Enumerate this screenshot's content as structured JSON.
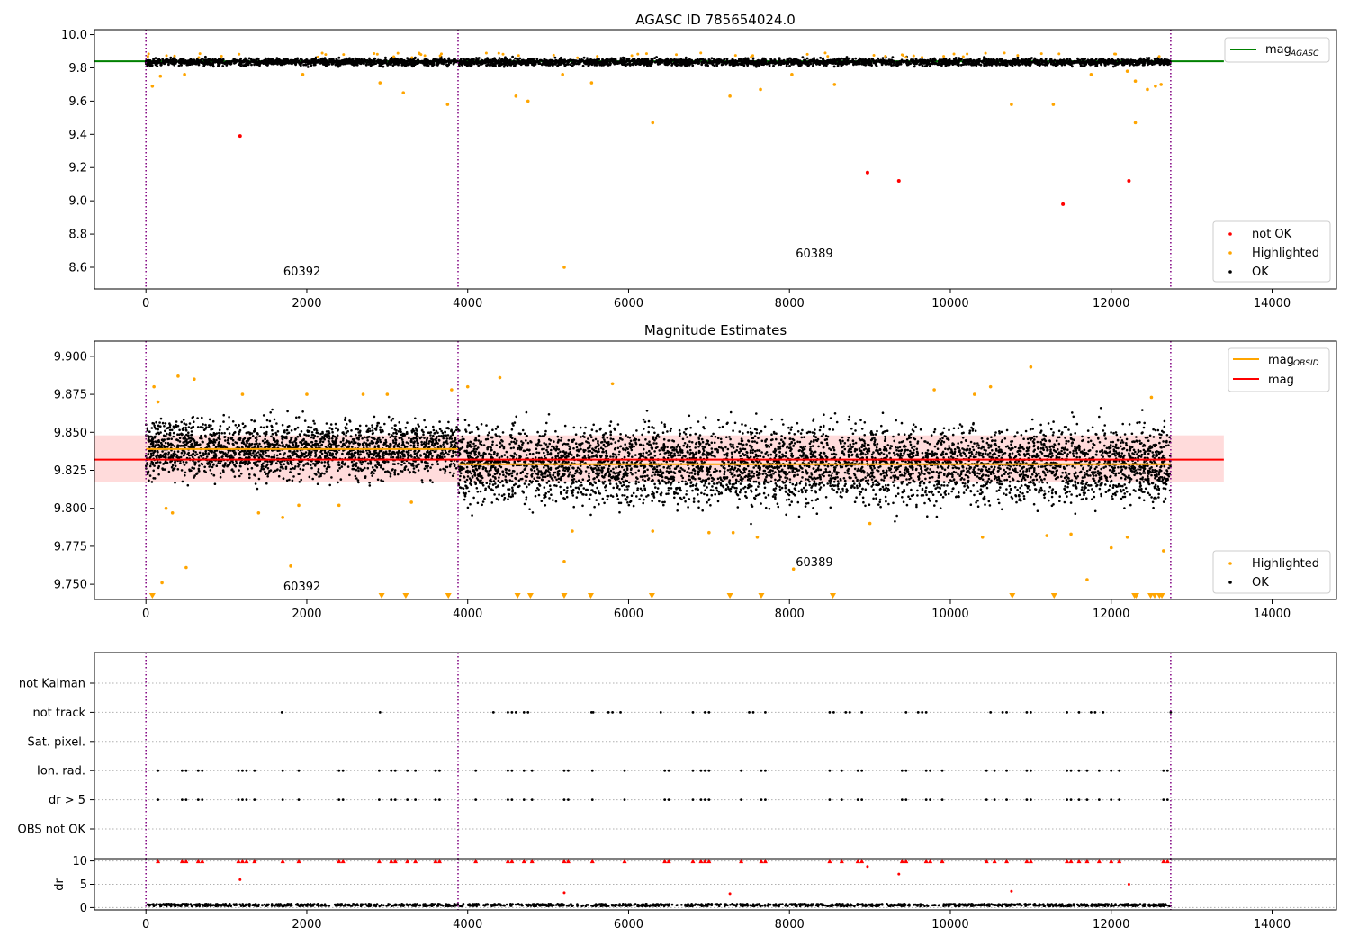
{
  "figure": {
    "colors": {
      "ok": "#000000",
      "highlighted": "#ffa500",
      "not_ok": "#ff0000",
      "obsid_boundary": "#800080",
      "mag_agasc": "#008000",
      "mag_obsid": "#ffa500",
      "mag": "#ff0000",
      "band": "#ffcccc"
    }
  },
  "chart_data": [
    {
      "type": "scatter",
      "title": "AGASC ID 785654024.0",
      "xlim": [
        -640,
        14800
      ],
      "ylim": [
        8.47,
        10.03
      ],
      "xticks": [
        0,
        2000,
        4000,
        6000,
        8000,
        10000,
        12000,
        14000
      ],
      "yticks": [
        8.6,
        8.8,
        9.0,
        9.2,
        9.4,
        9.6,
        9.8,
        10.0
      ],
      "obsid_boundaries_x": [
        0,
        3880,
        12740
      ],
      "obsid_labels": [
        {
          "text": "60392",
          "x": 1940,
          "y": 8.55
        },
        {
          "text": "60389",
          "x": 8310,
          "y": 8.66
        }
      ],
      "lines": [
        {
          "name": "mag_AGASC",
          "y": 9.84,
          "x_range": [
            -640,
            13400
          ],
          "color": "#008000"
        }
      ],
      "ok_band": {
        "y_center": 9.835,
        "y_spread": 0.03,
        "x_range": [
          0,
          12740
        ]
      },
      "highlighted_points": [
        [
          80,
          9.69
        ],
        [
          180,
          9.75
        ],
        [
          480,
          9.76
        ],
        [
          1950,
          9.76
        ],
        [
          2910,
          9.71
        ],
        [
          3200,
          9.65
        ],
        [
          3750,
          9.58
        ],
        [
          4600,
          9.63
        ],
        [
          4750,
          9.6
        ],
        [
          5180,
          9.76
        ],
        [
          5200,
          8.6
        ],
        [
          5540,
          9.71
        ],
        [
          6300,
          9.47
        ],
        [
          7260,
          9.63
        ],
        [
          7640,
          9.67
        ],
        [
          8030,
          9.76
        ],
        [
          8560,
          9.7
        ],
        [
          10760,
          9.58
        ],
        [
          11280,
          9.58
        ],
        [
          11750,
          9.76
        ],
        [
          12200,
          9.78
        ],
        [
          12300,
          9.72
        ],
        [
          12300,
          9.47
        ],
        [
          12450,
          9.67
        ],
        [
          12550,
          9.69
        ],
        [
          12620,
          9.7
        ]
      ],
      "not_ok_points": [
        [
          1170,
          9.39
        ],
        [
          8970,
          9.17
        ],
        [
          9360,
          9.12
        ],
        [
          11400,
          8.98
        ],
        [
          12220,
          9.12
        ]
      ],
      "legend": [
        {
          "label": "mag",
          "sub": "AGASC",
          "kind": "line",
          "color": "#008000"
        },
        {
          "label": "not OK",
          "kind": "marker",
          "color": "#ff0000"
        },
        {
          "label": "Highlighted",
          "kind": "marker",
          "color": "#ffa500"
        },
        {
          "label": "OK",
          "kind": "marker",
          "color": "#000000"
        }
      ]
    },
    {
      "type": "scatter",
      "title": "Magnitude Estimates",
      "xlim": [
        -640,
        14800
      ],
      "ylim": [
        9.74,
        9.91
      ],
      "xticks": [
        0,
        2000,
        4000,
        6000,
        8000,
        10000,
        12000,
        14000
      ],
      "yticks": [
        9.75,
        9.775,
        9.8,
        9.825,
        9.85,
        9.875,
        9.9
      ],
      "ytick_labels": [
        "9.750",
        "9.775",
        "9.800",
        "9.825",
        "9.850",
        "9.875",
        "9.900"
      ],
      "obsid_boundaries_x": [
        0,
        3880,
        12740
      ],
      "obsid_labels": [
        {
          "text": "60392",
          "x": 1940,
          "y": 9.746
        },
        {
          "text": "60389",
          "x": 8310,
          "y": 9.762
        }
      ],
      "mag_band": {
        "x_range": [
          -640,
          13400
        ],
        "y_range": [
          9.817,
          9.848
        ],
        "color": "#ffcccc"
      },
      "lines": [
        {
          "name": "mag_OBSID 60392",
          "y": 9.839,
          "x_range": [
            0,
            3880
          ],
          "color": "#ffa500"
        },
        {
          "name": "mag_OBSID 60389",
          "y": 9.829,
          "x_range": [
            3880,
            12740
          ],
          "color": "#ffa500"
        },
        {
          "name": "mag",
          "y": 9.832,
          "x_range": [
            -640,
            13400
          ],
          "color": "#ff0000"
        }
      ],
      "ok_segments": [
        {
          "x_range": [
            0,
            3880
          ],
          "center": 9.839,
          "spread": 0.014
        },
        {
          "x_range": [
            3880,
            12740
          ],
          "center": 9.829,
          "spread": 0.019
        }
      ],
      "highlighted_points": [
        [
          100,
          9.88
        ],
        [
          150,
          9.87
        ],
        [
          200,
          9.751
        ],
        [
          250,
          9.8
        ],
        [
          330,
          9.797
        ],
        [
          400,
          9.887
        ],
        [
          500,
          9.761
        ],
        [
          600,
          9.885
        ],
        [
          1200,
          9.875
        ],
        [
          1400,
          9.797
        ],
        [
          1700,
          9.794
        ],
        [
          1800,
          9.762
        ],
        [
          1900,
          9.802
        ],
        [
          2000,
          9.875
        ],
        [
          2400,
          9.802
        ],
        [
          2700,
          9.875
        ],
        [
          3000,
          9.875
        ],
        [
          3300,
          9.804
        ],
        [
          3800,
          9.878
        ],
        [
          4000,
          9.88
        ],
        [
          4400,
          9.886
        ],
        [
          5200,
          9.765
        ],
        [
          5300,
          9.785
        ],
        [
          5800,
          9.882
        ],
        [
          6300,
          9.785
        ],
        [
          7000,
          9.784
        ],
        [
          7300,
          9.784
        ],
        [
          7600,
          9.781
        ],
        [
          8050,
          9.76
        ],
        [
          9000,
          9.79
        ],
        [
          9800,
          9.878
        ],
        [
          10300,
          9.875
        ],
        [
          10400,
          9.781
        ],
        [
          10500,
          9.88
        ],
        [
          11000,
          9.893
        ],
        [
          11200,
          9.782
        ],
        [
          11500,
          9.783
        ],
        [
          11700,
          9.753
        ],
        [
          12000,
          9.774
        ],
        [
          12200,
          9.781
        ],
        [
          12500,
          9.873
        ],
        [
          12650,
          9.772
        ]
      ],
      "offscale_low_markers_x": [
        80,
        2930,
        3230,
        3760,
        4620,
        4780,
        5200,
        5530,
        6290,
        7260,
        7650,
        8540,
        10770,
        11290,
        12290,
        12310,
        12490,
        12540,
        12600,
        12630
      ],
      "legend": [
        {
          "label": "mag",
          "sub": "OBSID",
          "kind": "line",
          "color": "#ffa500"
        },
        {
          "label": "mag",
          "kind": "line",
          "color": "#ff0000"
        },
        {
          "label": "Highlighted",
          "kind": "marker",
          "color": "#ffa500"
        },
        {
          "label": "OK",
          "kind": "marker",
          "color": "#000000"
        }
      ]
    },
    {
      "type": "scatter",
      "title": "",
      "xlim": [
        -640,
        14800
      ],
      "categories": [
        "not Kalman",
        "not track",
        "Sat. pixel.",
        "Ion. rad.",
        "dr > 5",
        "OBS not OK"
      ],
      "obsid_boundaries_x": [
        0,
        3880,
        12740
      ],
      "flag_x": {
        "not track": [
          1690,
          2910,
          4320,
          4500,
          4550,
          4600,
          4700,
          4750,
          5540,
          5560,
          5750,
          5800,
          5900,
          6400,
          6800,
          6950,
          7000,
          7500,
          7550,
          7700,
          8500,
          8550,
          8700,
          8750,
          8900,
          9450,
          9600,
          9650,
          9700,
          10500,
          10650,
          10700,
          10950,
          11000,
          11450,
          11600,
          11750,
          11800,
          11900,
          12740
        ],
        "Ion. rad.": [
          150,
          450,
          500,
          650,
          700,
          1150,
          1200,
          1250,
          1350,
          1700,
          1900,
          2400,
          2450,
          2900,
          3050,
          3100,
          3250,
          3350,
          3600,
          3650,
          4100,
          4500,
          4550,
          4700,
          4800,
          5200,
          5250,
          5550,
          5950,
          6450,
          6500,
          6800,
          6900,
          6950,
          7000,
          7400,
          7650,
          7700,
          8500,
          8650,
          8850,
          8900,
          9400,
          9450,
          9700,
          9750,
          9900,
          10450,
          10550,
          10700,
          10950,
          11000,
          11450,
          11500,
          11600,
          11700,
          11850,
          12000,
          12100,
          12650,
          12700
        ],
        "dr > 5": [
          150,
          450,
          500,
          650,
          700,
          1150,
          1200,
          1250,
          1350,
          1700,
          1900,
          2400,
          2450,
          2900,
          3050,
          3100,
          3250,
          3350,
          3600,
          3650,
          4100,
          4500,
          4550,
          4700,
          4800,
          5200,
          5250,
          5550,
          5950,
          6450,
          6500,
          6800,
          6900,
          6950,
          7000,
          7400,
          7650,
          7700,
          8500,
          8650,
          8850,
          8900,
          9400,
          9450,
          9700,
          9750,
          9900,
          10450,
          10550,
          10700,
          10950,
          11000,
          11450,
          11500,
          11600,
          11700,
          11850,
          12000,
          12100,
          12650,
          12700
        ]
      }
    },
    {
      "type": "scatter",
      "title": "",
      "xlim": [
        -640,
        14800
      ],
      "ylim": [
        -0.5,
        10.5
      ],
      "ylabel": "dr",
      "xticks": [
        0,
        2000,
        4000,
        6000,
        8000,
        10000,
        12000,
        14000
      ],
      "yticks": [
        0,
        5,
        10
      ],
      "obsid_boundaries_x": [
        0,
        3880,
        12740
      ],
      "ok_points_level": [
        0.3,
        0.8
      ],
      "not_ok_points": [
        [
          1170,
          6
        ],
        [
          5200,
          3.2
        ],
        [
          7260,
          3
        ],
        [
          8970,
          8.8
        ],
        [
          9360,
          7.2
        ],
        [
          10760,
          3.5
        ],
        [
          12220,
          5
        ]
      ],
      "clipped_markers_x": [
        150,
        450,
        500,
        650,
        700,
        1150,
        1200,
        1250,
        1350,
        1700,
        1900,
        2400,
        2450,
        2900,
        3050,
        3100,
        3250,
        3350,
        3600,
        3650,
        4100,
        4500,
        4550,
        4700,
        4800,
        5200,
        5250,
        5550,
        5950,
        6450,
        6500,
        6800,
        6900,
        6950,
        7000,
        7400,
        7650,
        7700,
        8500,
        8650,
        8850,
        8900,
        9400,
        9450,
        9700,
        9750,
        9900,
        10450,
        10550,
        10700,
        10950,
        11000,
        11450,
        11500,
        11600,
        11700,
        11850,
        12000,
        12100,
        12650,
        12700
      ]
    }
  ]
}
